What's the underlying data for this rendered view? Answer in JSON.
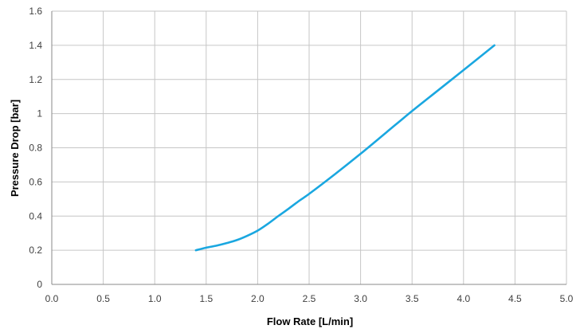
{
  "chart_data": {
    "type": "line",
    "title": "",
    "xlabel": "Flow Rate [L/min]",
    "ylabel": "Pressure Drop [bar]",
    "xlim": [
      0,
      5
    ],
    "ylim": [
      0,
      1.6
    ],
    "x_ticks": [
      "0.0",
      "0.5",
      "1.0",
      "1.5",
      "2.0",
      "2.5",
      "3.0",
      "3.5",
      "4.0",
      "4.5",
      "5.0"
    ],
    "y_ticks": [
      "0",
      "0.2",
      "0.4",
      "0.6",
      "0.8",
      "1",
      "1.2",
      "1.4",
      "1.6"
    ],
    "grid": true,
    "legend": "none",
    "line_color": "#1AA7E0",
    "series": [
      {
        "x": [
          1.4,
          1.5,
          1.6,
          1.7,
          1.8,
          1.9,
          2.0,
          2.1,
          2.2,
          2.3,
          2.4,
          2.5,
          2.75,
          3.0,
          3.25,
          3.5,
          3.75,
          4.0,
          4.3
        ],
        "y": [
          0.2,
          0.215,
          0.227,
          0.242,
          0.26,
          0.285,
          0.315,
          0.355,
          0.4,
          0.443,
          0.488,
          0.53,
          0.645,
          0.765,
          0.89,
          1.015,
          1.135,
          1.255,
          1.4
        ]
      }
    ]
  }
}
